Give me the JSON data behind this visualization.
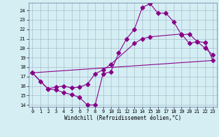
{
  "xlabel": "Windchill (Refroidissement éolien,°C)",
  "bg_color": "#d4eef4",
  "line_color": "#880088",
  "grid_color": "#aabbcc",
  "xlim": [
    -0.5,
    23.5
  ],
  "ylim": [
    13.8,
    24.8
  ],
  "yticks": [
    14,
    15,
    16,
    17,
    18,
    19,
    20,
    21,
    22,
    23,
    24
  ],
  "xticks": [
    0,
    1,
    2,
    3,
    4,
    5,
    6,
    7,
    8,
    9,
    10,
    11,
    12,
    13,
    14,
    15,
    16,
    17,
    18,
    19,
    20,
    21,
    22,
    23
  ],
  "line1_x": [
    0,
    1,
    2,
    3,
    4,
    5,
    6,
    7,
    8,
    9,
    10,
    11,
    12,
    13,
    14,
    15,
    16,
    17,
    18,
    19,
    20,
    21,
    22,
    23
  ],
  "line1_y": [
    17.4,
    16.5,
    15.7,
    15.6,
    15.3,
    15.1,
    14.8,
    14.0,
    14.0,
    17.3,
    17.5,
    19.5,
    21.0,
    22.0,
    24.3,
    24.7,
    23.7,
    23.7,
    22.8,
    21.4,
    21.5,
    20.7,
    20.0,
    19.3
  ],
  "line2_x": [
    0,
    2,
    3,
    4,
    5,
    6,
    7,
    8,
    9,
    10,
    13,
    14,
    15,
    19,
    20,
    21,
    22,
    23
  ],
  "line2_y": [
    17.4,
    15.7,
    15.9,
    16.0,
    15.8,
    15.9,
    16.2,
    17.3,
    17.7,
    18.3,
    20.5,
    21.0,
    21.2,
    21.5,
    20.5,
    20.7,
    20.6,
    18.7
  ],
  "line3_x": [
    0,
    23
  ],
  "line3_y": [
    17.4,
    18.7
  ]
}
